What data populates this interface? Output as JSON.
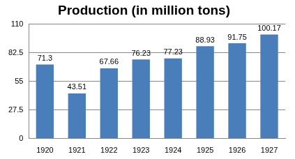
{
  "chart_data": {
    "type": "bar",
    "title": "Production (in million tons)",
    "categories": [
      "1920",
      "1921",
      "1922",
      "1923",
      "1924",
      "1925",
      "1926",
      "1927"
    ],
    "values": [
      71.3,
      43.51,
      67.66,
      76.23,
      77.23,
      88.93,
      91.75,
      100.17
    ],
    "color": "#4a7ebb",
    "ylim": [
      0,
      110
    ],
    "yticks": [
      0,
      27.5,
      55,
      82.5,
      110
    ],
    "grid": true,
    "data_labels": true
  }
}
